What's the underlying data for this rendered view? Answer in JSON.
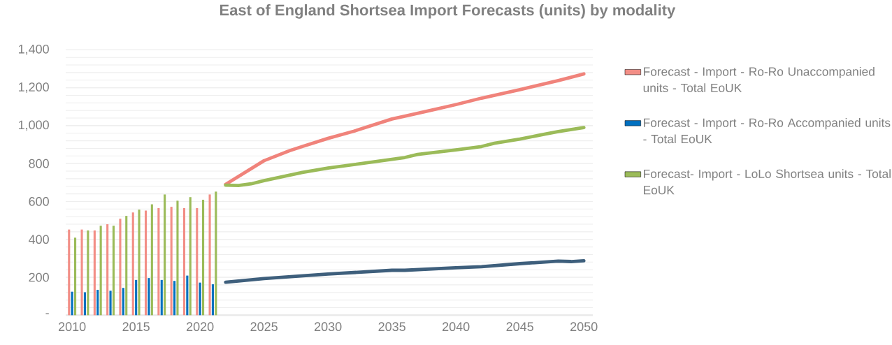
{
  "chart_data": {
    "type": "bar",
    "title": "East of England Shortsea Import Forecasts (units) by modality",
    "xlim": [
      2009.5,
      2050.7
    ],
    "xticks": [
      2010,
      2015,
      2020,
      2025,
      2030,
      2035,
      2040,
      2045,
      2050
    ],
    "ylim": [
      0,
      1400
    ],
    "yticks": [
      {
        "value": 0,
        "label": "-"
      },
      {
        "value": 40,
        "label": null
      },
      {
        "value": 80,
        "label": null
      },
      {
        "value": 120,
        "label": null
      },
      {
        "value": 160,
        "label": null
      },
      {
        "value": 200,
        "label": "200"
      },
      {
        "value": 240,
        "label": null
      },
      {
        "value": 280,
        "label": null
      },
      {
        "value": 320,
        "label": null
      },
      {
        "value": 360,
        "label": null
      },
      {
        "value": 400,
        "label": "400"
      },
      {
        "value": 440,
        "label": null
      },
      {
        "value": 480,
        "label": null
      },
      {
        "value": 520,
        "label": null
      },
      {
        "value": 560,
        "label": null
      },
      {
        "value": 600,
        "label": "600"
      },
      {
        "value": 640,
        "label": null
      },
      {
        "value": 680,
        "label": null
      },
      {
        "value": 720,
        "label": null
      },
      {
        "value": 760,
        "label": null
      },
      {
        "value": 800,
        "label": "800"
      },
      {
        "value": 840,
        "label": null
      },
      {
        "value": 880,
        "label": null
      },
      {
        "value": 920,
        "label": null
      },
      {
        "value": 960,
        "label": null
      },
      {
        "value": 1000,
        "label": "1,000"
      },
      {
        "value": 1040,
        "label": null
      },
      {
        "value": 1080,
        "label": null
      },
      {
        "value": 1120,
        "label": null
      },
      {
        "value": 1160,
        "label": null
      },
      {
        "value": 1200,
        "label": "1,200"
      },
      {
        "value": 1240,
        "label": null
      },
      {
        "value": 1280,
        "label": null
      },
      {
        "value": 1320,
        "label": null
      },
      {
        "value": 1360,
        "label": null
      },
      {
        "value": 1400,
        "label": "1,400"
      }
    ],
    "grid": "y",
    "legend": "right",
    "series": [
      {
        "name": "Forecast - Import - Ro-Ro Unaccompanied units - Total EoUK",
        "color": "#f28e86",
        "x": [
          2010,
          2011,
          2012,
          2013,
          2014,
          2015,
          2016,
          2017,
          2018,
          2019,
          2020,
          2021
        ],
        "values": [
          452,
          452,
          447,
          480,
          509,
          542,
          552,
          565,
          572,
          565,
          565,
          637
        ]
      },
      {
        "name": "Forecast - Import - Ro-Ro Accompanied units - Total EoUK",
        "color": "#0070c0",
        "x": [
          2010,
          2011,
          2012,
          2013,
          2014,
          2015,
          2016,
          2017,
          2018,
          2019,
          2020,
          2021
        ],
        "values": [
          124,
          121,
          134,
          129,
          144,
          186,
          196,
          186,
          181,
          209,
          172,
          163
        ]
      },
      {
        "name": "Forecast-  Import - LoLo Shortsea units - Total EoUK",
        "color": "#9bbb59",
        "x": [
          2010,
          2011,
          2012,
          2013,
          2014,
          2015,
          2016,
          2017,
          2018,
          2019,
          2020,
          2021
        ],
        "values": [
          409,
          447,
          472,
          472,
          524,
          557,
          585,
          637,
          604,
          623,
          609,
          652
        ]
      },
      {
        "type": "line",
        "color": "#f0837b",
        "x": [
          2022,
          2025,
          2027,
          2028,
          2030,
          2032,
          2035,
          2036,
          2038,
          2040,
          2042,
          2045,
          2047,
          2048,
          2050
        ],
        "values": [
          690,
          815,
          868,
          890,
          933,
          970,
          1035,
          1050,
          1080,
          1111,
          1145,
          1190,
          1222,
          1238,
          1273
        ]
      },
      {
        "type": "line",
        "color": "#9bbb59",
        "x": [
          2022,
          2023,
          2024,
          2025,
          2028,
          2030,
          2035,
          2036,
          2037,
          2040,
          2042,
          2043,
          2045,
          2047,
          2048,
          2050
        ],
        "values": [
          686,
          684,
          693,
          710,
          753,
          776,
          822,
          832,
          848,
          872,
          890,
          907,
          929,
          956,
          969,
          990
        ]
      },
      {
        "type": "line",
        "color": "#3e5f7c",
        "x": [
          2022,
          2025,
          2030,
          2035,
          2036,
          2040,
          2042,
          2045,
          2048,
          2049,
          2050
        ],
        "values": [
          174,
          193,
          217,
          237,
          237,
          250,
          256,
          272,
          285,
          283,
          287
        ]
      }
    ]
  }
}
